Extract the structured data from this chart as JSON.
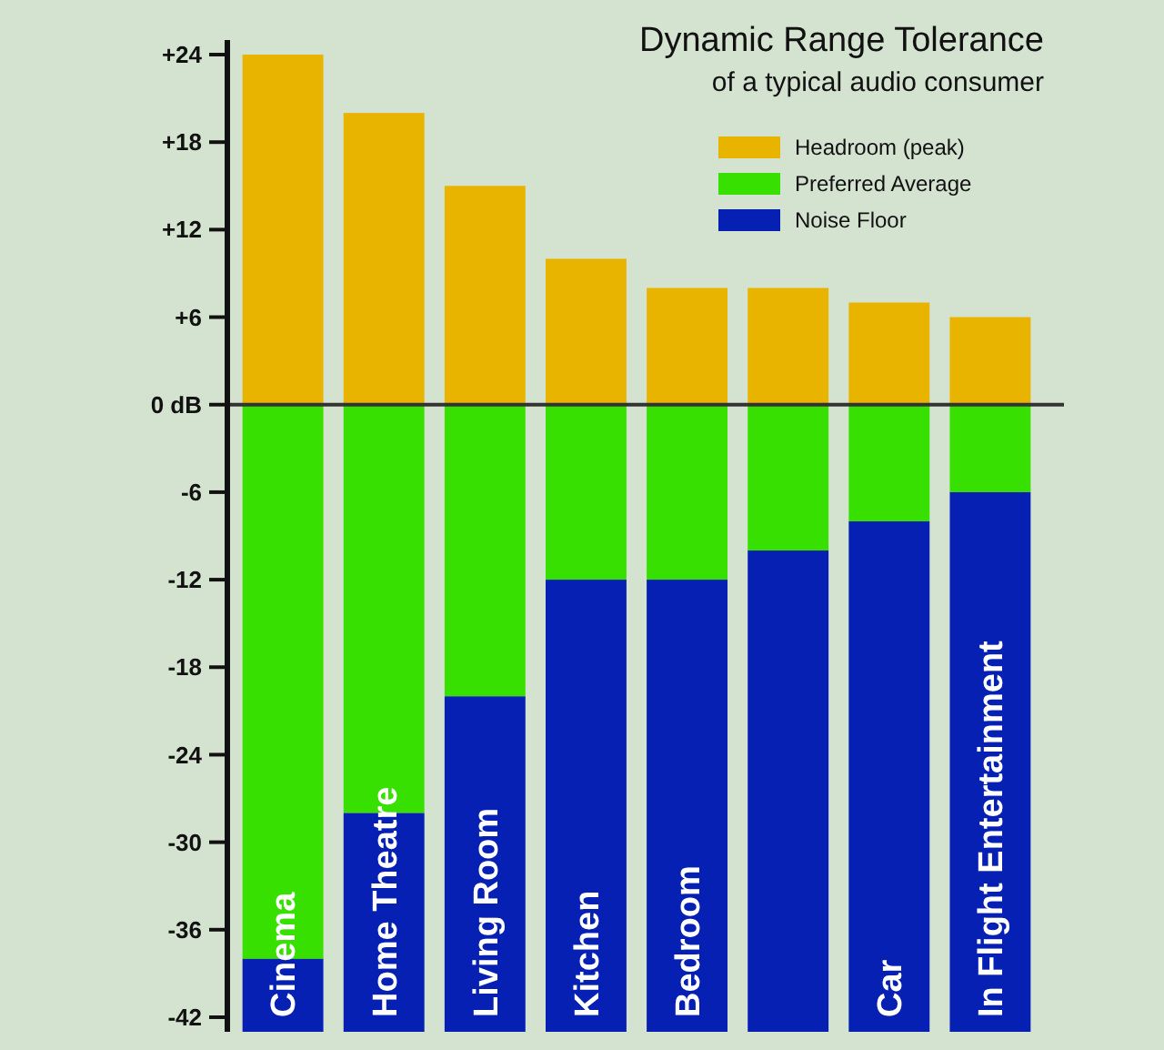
{
  "chart_data": {
    "type": "bar",
    "title": "Dynamic Range Tolerance",
    "subtitle": "of a typical audio consumer",
    "categories": [
      "Cinema",
      "Home Theatre",
      "Living Room",
      "Kitchen",
      "Bedroom",
      null,
      "Car",
      "In Flight Entertainment"
    ],
    "stacked": true,
    "series": [
      {
        "name": "Headroom (peak)",
        "color": "#e8b400",
        "values": [
          24,
          20,
          15,
          10,
          8,
          8,
          7,
          6
        ]
      },
      {
        "name": "Preferred Average",
        "color": "#38e000",
        "values": [
          -38,
          -28,
          -20,
          -12,
          -12,
          -10,
          -8,
          -6
        ]
      },
      {
        "name": "Noise Floor",
        "color": "#0620b4",
        "values": [
          -5,
          -15,
          -23,
          -31,
          -31,
          -33,
          -35,
          -37
        ]
      }
    ],
    "ylim": [
      -43,
      25
    ],
    "yticks": [
      {
        "value": 24,
        "label": "+24"
      },
      {
        "value": 18,
        "label": "+18"
      },
      {
        "value": 12,
        "label": "+12"
      },
      {
        "value": 6,
        "label": "+6"
      },
      {
        "value": 0,
        "label": "0 dB"
      },
      -6,
      -12,
      -18,
      -24,
      -30,
      -36,
      -42
    ],
    "ref_lines": [
      {
        "axis": "y",
        "value": 0,
        "color": "#333333"
      }
    ],
    "legend": "top right"
  }
}
